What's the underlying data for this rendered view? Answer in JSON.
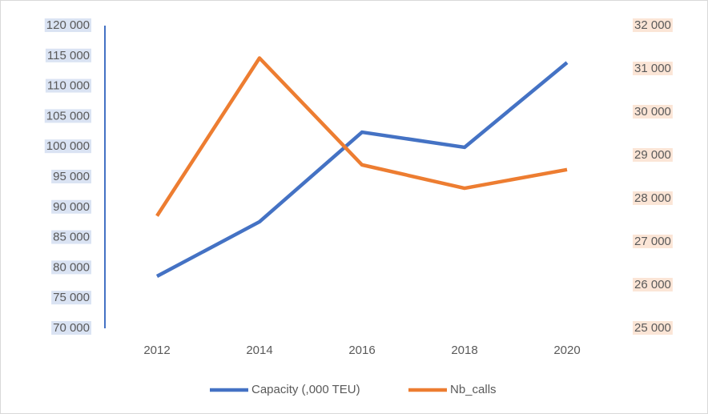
{
  "chart_data": {
    "type": "line",
    "categories": [
      "2012",
      "2014",
      "2016",
      "2018",
      "2020"
    ],
    "series": [
      {
        "name": "Capacity (,000 TEU)",
        "color": "#4472c4",
        "values": [
          78600,
          87600,
          102400,
          99900,
          113900
        ]
      },
      {
        "name": "Nb_calls",
        "color": "#ed7d31",
        "axis": "y2",
        "values": [
          27600,
          31250,
          28780,
          28240,
          28670
        ]
      }
    ],
    "ylim": [
      70000,
      120000
    ],
    "yticks": [
      {
        "value": 70000,
        "label": "70 000"
      },
      {
        "value": 75000,
        "label": "75 000"
      },
      {
        "value": 80000,
        "label": "80 000"
      },
      {
        "value": 85000,
        "label": "85 000"
      },
      {
        "value": 90000,
        "label": "90 000"
      },
      {
        "value": 95000,
        "label": "95 000"
      },
      {
        "value": 100000,
        "label": "100 000"
      },
      {
        "value": 105000,
        "label": "105 000"
      },
      {
        "value": 110000,
        "label": "110 000"
      },
      {
        "value": 115000,
        "label": "115 000"
      },
      {
        "value": 120000,
        "label": "120 000"
      }
    ],
    "y2lim": [
      25000,
      32000
    ],
    "y2ticks": [
      {
        "value": 25000,
        "label": "25 000"
      },
      {
        "value": 26000,
        "label": "26 000"
      },
      {
        "value": 27000,
        "label": "27 000"
      },
      {
        "value": 28000,
        "label": "28 000"
      },
      {
        "value": 29000,
        "label": "29 000"
      },
      {
        "value": 30000,
        "label": "30 000"
      },
      {
        "value": 31000,
        "label": "31 000"
      },
      {
        "value": 32000,
        "label": "32 000"
      }
    ],
    "legend": "bottom"
  }
}
